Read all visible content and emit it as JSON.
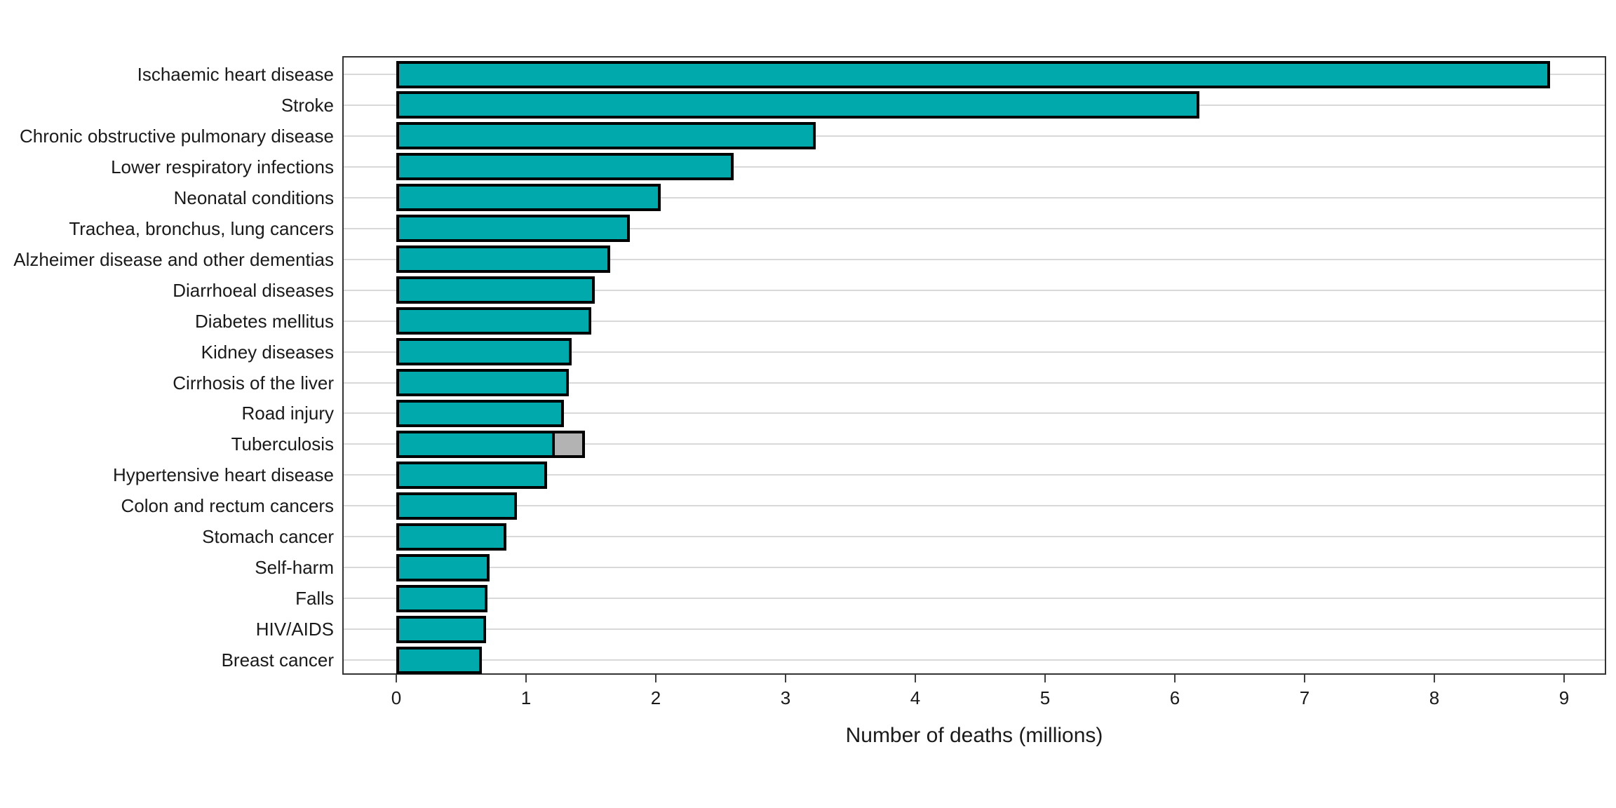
{
  "chart_data": {
    "type": "bar",
    "orientation": "horizontal",
    "title": "",
    "xlabel": "Number of deaths (millions)",
    "ylabel": "",
    "xlim": [
      0,
      9.3
    ],
    "x_ticks": [
      0,
      1,
      2,
      3,
      4,
      5,
      6,
      7,
      8,
      9
    ],
    "grid": "horizontal-only",
    "legend": "none",
    "categories": [
      "Ischaemic heart disease",
      "Stroke",
      "Chronic obstructive pulmonary disease",
      "Lower respiratory infections",
      "Neonatal conditions",
      "Trachea, bronchus, lung cancers",
      "Alzheimer disease and other dementias",
      "Diarrhoeal diseases",
      "Diabetes mellitus",
      "Kidney diseases",
      "Cirrhosis of the liver",
      "Road injury",
      "Tuberculosis",
      "Hypertensive heart disease",
      "Colon and rectum cancers",
      "Stomach cancer",
      "Self-harm",
      "Falls",
      "HIV/AIDS",
      "Breast cancer"
    ],
    "values": [
      8.89,
      6.19,
      3.23,
      2.6,
      2.04,
      1.8,
      1.65,
      1.53,
      1.5,
      1.35,
      1.33,
      1.29,
      1.22,
      1.16,
      0.93,
      0.85,
      0.72,
      0.7,
      0.69,
      0.66
    ],
    "extra_segments": [
      {
        "category": "Tuberculosis",
        "start": 1.22,
        "value": 0.21,
        "color": "#b3b3b3"
      }
    ],
    "colors": {
      "bar_fill": "#00a9ac",
      "bar_border": "#000000",
      "extra_segment_fill": "#b3b3b3",
      "gridline": "#d9d9d9",
      "panel_border": "#333333",
      "axis_text": "#1a1a1a",
      "background": "#ffffff"
    }
  }
}
